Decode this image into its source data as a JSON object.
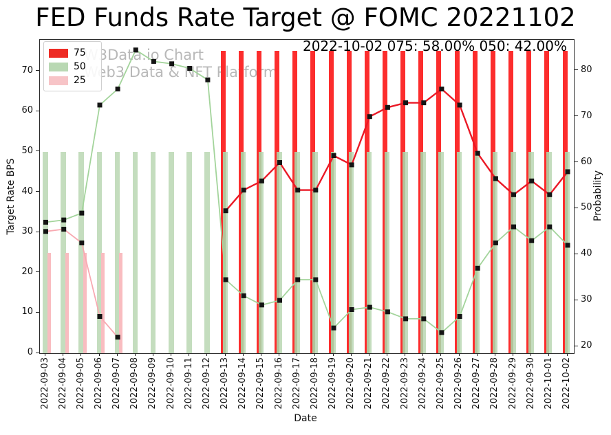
{
  "title": "FED Funds Rate Target @ FOMC 20221102",
  "annotation": "2022-10-02 075: 58.00% 050: 42.00%",
  "watermark": {
    "line1": "W3Data.io Chart",
    "line2": "Web3 Data & NFT Platform"
  },
  "legend": [
    {
      "label": "75",
      "color": "#ee2b24"
    },
    {
      "label": "50",
      "color": "#b9d8b3"
    },
    {
      "label": "25",
      "color": "#f7c4c7"
    }
  ],
  "axes": {
    "x": {
      "label": "Date"
    },
    "left": {
      "label": "Target Rate BPS",
      "ticks": [
        0,
        10,
        20,
        30,
        40,
        50,
        60,
        70
      ],
      "range": [
        0,
        77.8
      ]
    },
    "right": {
      "label": "Probability",
      "ticks": [
        20,
        30,
        40,
        50,
        60,
        70,
        80
      ],
      "range": [
        18.5,
        86.7
      ]
    }
  },
  "colors": {
    "bar_75": "#fc2d2d",
    "bar_50": "#c4ddbe",
    "bar_overlap": "#b2c49b",
    "bar_25": "#f9bcc0",
    "line_75": "#ea1926",
    "line_50": "#a3d49b",
    "line_25": "#f8a9b1",
    "marker": "#141414"
  },
  "chart_data": {
    "type": "bar+line",
    "x": [
      "2022-09-03",
      "2022-09-04",
      "2022-09-05",
      "2022-09-06",
      "2022-09-07",
      "2022-09-08",
      "2022-09-09",
      "2022-09-10",
      "2022-09-11",
      "2022-09-12",
      "2022-09-13",
      "2022-09-14",
      "2022-09-15",
      "2022-09-16",
      "2022-09-17",
      "2022-09-18",
      "2022-09-19",
      "2022-09-20",
      "2022-09-21",
      "2022-09-22",
      "2022-09-23",
      "2022-09-24",
      "2022-09-25",
      "2022-09-26",
      "2022-09-27",
      "2022-09-28",
      "2022-09-29",
      "2022-09-30",
      "2022-10-01",
      "2022-10-02"
    ],
    "bar_series": [
      {
        "name": "75",
        "axis": "left",
        "values": [
          null,
          null,
          null,
          null,
          null,
          null,
          null,
          null,
          null,
          null,
          75,
          75,
          75,
          75,
          75,
          75,
          75,
          75,
          75,
          75,
          75,
          75,
          75,
          75,
          75,
          75,
          75,
          75,
          75,
          75
        ]
      },
      {
        "name": "50",
        "axis": "left",
        "values": [
          50,
          50,
          50,
          50,
          50,
          50,
          50,
          50,
          50,
          50,
          50,
          50,
          50,
          50,
          50,
          50,
          50,
          50,
          50,
          50,
          50,
          50,
          50,
          50,
          50,
          50,
          50,
          50,
          50,
          50
        ]
      },
      {
        "name": "25",
        "axis": "left",
        "values": [
          25,
          25,
          25,
          25,
          25,
          null,
          null,
          null,
          null,
          null,
          null,
          null,
          null,
          null,
          null,
          null,
          null,
          null,
          null,
          null,
          null,
          null,
          null,
          null,
          null,
          null,
          null,
          null,
          null,
          null
        ]
      }
    ],
    "line_series": [
      {
        "name": "prob-75",
        "axis": "right",
        "values": [
          null,
          null,
          null,
          null,
          null,
          null,
          null,
          null,
          null,
          null,
          49.5,
          54,
          56,
          60,
          54,
          54,
          61.5,
          59.5,
          70,
          72,
          73,
          73,
          76,
          72.5,
          62,
          56.5,
          53,
          56,
          53,
          58
        ]
      },
      {
        "name": "prob-50",
        "axis": "right",
        "values": [
          47,
          47.5,
          49,
          72.5,
          76,
          84.5,
          82,
          81.5,
          80.5,
          78,
          34.5,
          31,
          29,
          30,
          34.5,
          34.5,
          24,
          28,
          28.5,
          27.5,
          26,
          26,
          23,
          26.5,
          37,
          42.5,
          46,
          43,
          46,
          42
        ]
      },
      {
        "name": "prob-25",
        "axis": "right",
        "values": [
          45,
          45.5,
          42.5,
          26.5,
          22,
          null,
          null,
          null,
          null,
          null,
          null,
          null,
          null,
          null,
          null,
          null,
          null,
          null,
          null,
          null,
          null,
          null,
          null,
          null,
          null,
          null,
          null,
          null,
          null,
          null
        ]
      }
    ],
    "legend_position": "upper left",
    "grid": false
  }
}
